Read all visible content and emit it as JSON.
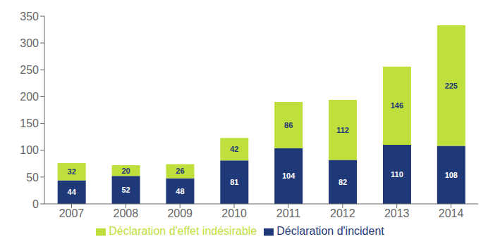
{
  "chart_data": {
    "type": "bar",
    "stacked": true,
    "categories": [
      "2007",
      "2008",
      "2009",
      "2010",
      "2011",
      "2012",
      "2013",
      "2014"
    ],
    "series": [
      {
        "name": "Déclaration d'incident",
        "color": "#1F3877",
        "values": [
          44,
          52,
          48,
          81,
          104,
          82,
          110,
          108
        ]
      },
      {
        "name": "Déclaration d'effet indésirable",
        "color": "#BFDF3C",
        "values": [
          32,
          20,
          26,
          42,
          86,
          112,
          146,
          225
        ]
      }
    ],
    "ylim": [
      0,
      350
    ],
    "yticks": [
      0,
      50,
      100,
      150,
      200,
      250,
      300,
      350
    ],
    "grid": false,
    "legend": "bottom",
    "data_labels": true
  }
}
